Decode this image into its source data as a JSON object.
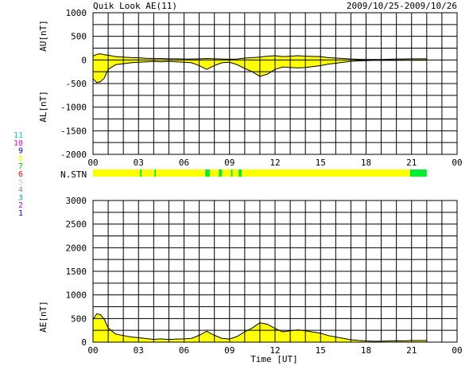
{
  "header": {
    "title": "Quik Look AE(11)",
    "date_range": "2009/10/25-2009/10/26"
  },
  "colors": {
    "fill_main": "#ffff00",
    "fill_alt": "#00ee33",
    "line": "#000000",
    "grid": "#000000"
  },
  "station_legend": [
    {
      "label": "11",
      "color": "#00cccc"
    },
    {
      "label": "10",
      "color": "#ff00ff"
    },
    {
      "label": "9",
      "color": "#0000cc"
    },
    {
      "label": "8",
      "color": "#ffff00"
    },
    {
      "label": "7",
      "color": "#00cc00"
    },
    {
      "label": "6",
      "color": "#ff0000"
    },
    {
      "label": "5",
      "color": "#cccccc"
    },
    {
      "label": "4",
      "color": "#888888"
    },
    {
      "label": "3",
      "color": "#00aaaa"
    },
    {
      "label": "2",
      "color": "#cc00cc"
    },
    {
      "label": "1",
      "color": "#0000ff"
    }
  ],
  "xaxis": {
    "label": "Time [UT]",
    "range": [
      0,
      24
    ],
    "ticks": [
      "00",
      "03",
      "06",
      "09",
      "12",
      "15",
      "18",
      "21",
      "00"
    ],
    "tick_hours": [
      0,
      3,
      6,
      9,
      12,
      15,
      18,
      21,
      24
    ]
  },
  "chart_data": [
    {
      "type": "area",
      "id": "au_al",
      "ylabel_top": "AU[nT]",
      "ylabel_bottom": "AL[nT]",
      "ylim": [
        -2000,
        1000
      ],
      "yticks": [
        1000,
        500,
        0,
        -500,
        -1000,
        -1500,
        -2000
      ],
      "ytick_labels": [
        "1000",
        "500",
        "0",
        "-500",
        "-1000",
        "-1500",
        "-2000"
      ],
      "grid": true,
      "series": [
        {
          "key": "AU",
          "x": [
            0,
            0.25,
            0.5,
            0.75,
            1,
            1.5,
            2,
            2.5,
            3,
            3.5,
            4,
            4.5,
            5,
            5.5,
            6,
            6.5,
            7,
            7.5,
            8,
            8.5,
            9,
            9.5,
            10,
            10.5,
            11,
            11.5,
            12,
            12.5,
            13,
            13.5,
            14,
            14.5,
            15,
            15.5,
            16,
            16.5,
            17,
            17.5,
            18,
            18.5,
            19,
            19.5,
            20,
            20.5,
            21,
            21.5,
            22
          ],
          "y": [
            80,
            120,
            130,
            110,
            100,
            70,
            60,
            50,
            45,
            35,
            30,
            30,
            25,
            25,
            20,
            20,
            25,
            30,
            25,
            20,
            15,
            20,
            40,
            50,
            60,
            80,
            90,
            70,
            80,
            90,
            80,
            75,
            70,
            50,
            40,
            30,
            20,
            15,
            10,
            10,
            10,
            15,
            20,
            20,
            25,
            25,
            25
          ]
        },
        {
          "key": "AL",
          "x": [
            0,
            0.25,
            0.5,
            0.75,
            1,
            1.5,
            2,
            2.5,
            3,
            3.5,
            4,
            4.5,
            5,
            5.5,
            6,
            6.5,
            7,
            7.5,
            8,
            8.5,
            9,
            9.5,
            10,
            10.5,
            11,
            11.5,
            12,
            12.5,
            13,
            13.5,
            14,
            14.5,
            15,
            15.5,
            16,
            16.5,
            17,
            17.5,
            18,
            18.5,
            19,
            19.5,
            20,
            20.5,
            21,
            21.5,
            22
          ],
          "y": [
            -400,
            -480,
            -460,
            -380,
            -200,
            -100,
            -80,
            -60,
            -50,
            -40,
            -30,
            -40,
            -30,
            -40,
            -50,
            -60,
            -120,
            -200,
            -120,
            -60,
            -50,
            -100,
            -180,
            -250,
            -350,
            -300,
            -200,
            -150,
            -160,
            -170,
            -160,
            -140,
            -120,
            -90,
            -70,
            -50,
            -30,
            -20,
            -15,
            -10,
            -10,
            -10,
            -10,
            -8,
            -8,
            -8,
            -8
          ]
        }
      ]
    },
    {
      "type": "area",
      "id": "ae",
      "ylabel": "AE[nT]",
      "ylim": [
        0,
        3000
      ],
      "yticks": [
        3000,
        2500,
        2000,
        1500,
        1000,
        500,
        0
      ],
      "ytick_labels": [
        "3000",
        "2500",
        "2000",
        "1500",
        "1000",
        "500",
        "0"
      ],
      "grid": true,
      "series": [
        {
          "key": "AE",
          "x": [
            0,
            0.25,
            0.5,
            0.75,
            1,
            1.5,
            2,
            2.5,
            3,
            3.5,
            4,
            4.5,
            5,
            5.5,
            6,
            6.5,
            7,
            7.5,
            8,
            8.5,
            9,
            9.5,
            10,
            10.5,
            11,
            11.5,
            12,
            12.5,
            13,
            13.5,
            14,
            14.5,
            15,
            15.5,
            16,
            16.5,
            17,
            17.5,
            18,
            18.5,
            19,
            19.5,
            20,
            20.5,
            21,
            21.5,
            22
          ],
          "y": [
            480,
            600,
            580,
            480,
            300,
            170,
            140,
            110,
            95,
            75,
            60,
            70,
            55,
            65,
            70,
            80,
            145,
            230,
            145,
            80,
            65,
            120,
            220,
            300,
            410,
            380,
            290,
            220,
            240,
            260,
            240,
            215,
            190,
            140,
            110,
            80,
            50,
            35,
            25,
            20,
            20,
            25,
            30,
            28,
            33,
            33,
            33
          ]
        }
      ]
    }
  ],
  "nstn": {
    "label": "N.STN",
    "segments": [
      {
        "start": 0,
        "end": 3.1,
        "level": "main"
      },
      {
        "start": 3.1,
        "end": 3.2,
        "level": "alt"
      },
      {
        "start": 3.2,
        "end": 4.05,
        "level": "main"
      },
      {
        "start": 4.05,
        "end": 4.15,
        "level": "alt"
      },
      {
        "start": 4.15,
        "end": 7.4,
        "level": "main"
      },
      {
        "start": 7.4,
        "end": 7.7,
        "level": "alt"
      },
      {
        "start": 7.7,
        "end": 8.3,
        "level": "main"
      },
      {
        "start": 8.3,
        "end": 8.5,
        "level": "alt"
      },
      {
        "start": 8.5,
        "end": 9.1,
        "level": "main"
      },
      {
        "start": 9.1,
        "end": 9.2,
        "level": "alt"
      },
      {
        "start": 9.2,
        "end": 9.6,
        "level": "main"
      },
      {
        "start": 9.6,
        "end": 9.8,
        "level": "alt"
      },
      {
        "start": 9.8,
        "end": 20.9,
        "level": "main"
      },
      {
        "start": 20.9,
        "end": 22.0,
        "level": "alt"
      }
    ]
  }
}
